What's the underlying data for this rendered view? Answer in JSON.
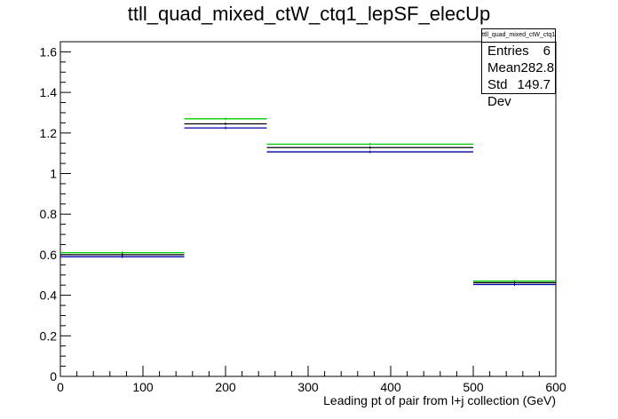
{
  "chart_data": {
    "type": "step",
    "title": "ttll_quad_mixed_ctW_ctq1_lepSF_elecUp",
    "xlabel": "Leading pt of pair from l+j collection (GeV)",
    "ylabel": "",
    "xlim": [
      0,
      600
    ],
    "ylim": [
      0,
      1.65
    ],
    "x_ticks": [
      "0",
      "100",
      "200",
      "300",
      "400",
      "500",
      "600"
    ],
    "y_ticks": [
      "0",
      "0.2",
      "0.4",
      "0.6",
      "0.8",
      "1",
      "1.2",
      "1.4",
      "1.6"
    ],
    "bin_edges": [
      0,
      150,
      250,
      500,
      600
    ],
    "series": [
      {
        "color": "#00cc00",
        "values": [
          0.61,
          1.27,
          1.145,
          0.47
        ]
      },
      {
        "color": "#000000",
        "values": [
          0.6,
          1.245,
          1.128,
          0.462
        ]
      },
      {
        "color": "#0000aa",
        "values": [
          0.59,
          1.225,
          1.107,
          0.453
        ]
      }
    ],
    "grid": false,
    "stats_box": {
      "title": "ttll_quad_mixed_ctW_ctq1_lepSF_elecUp",
      "rows": [
        {
          "label": "Entries",
          "value": "6"
        },
        {
          "label": "Mean",
          "value": "282.8"
        },
        {
          "label": "Std Dev",
          "value": "149.7"
        }
      ]
    }
  }
}
